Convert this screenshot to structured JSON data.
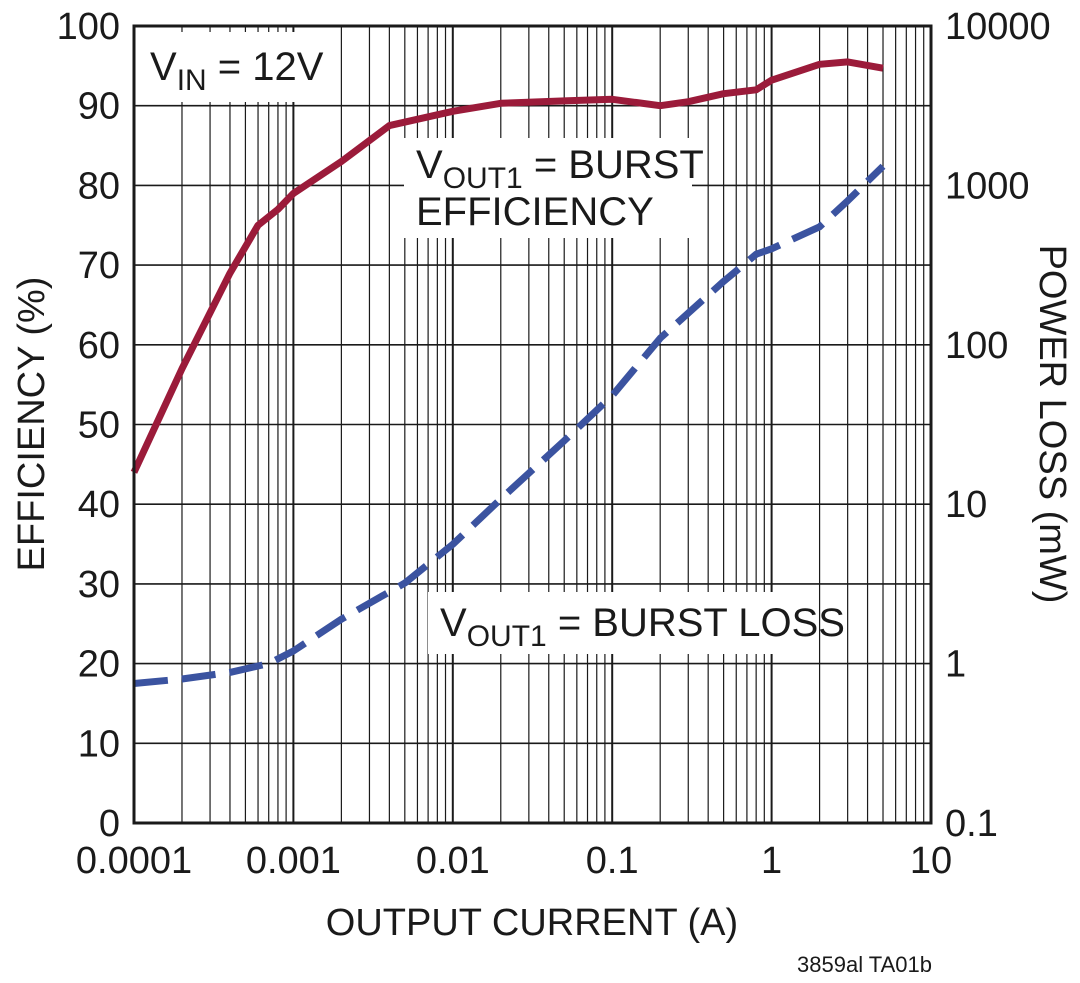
{
  "chart_data": {
    "type": "line",
    "xlabel": "OUTPUT CURRENT (A)",
    "ylabel_left": "EFFICIENCY (%)",
    "ylabel_right": "POWER LOSS (mW)",
    "x_scale": "log",
    "xlim": [
      0.0001,
      10
    ],
    "ylim_left": [
      0,
      100
    ],
    "ylim_right": [
      0.1,
      10000
    ],
    "y_right_scale": "log",
    "grid": true,
    "x_ticks": [
      "0.0001",
      "0.001",
      "0.01",
      "0.1",
      "1",
      "10"
    ],
    "y_left_ticks": [
      "0",
      "10",
      "20",
      "30",
      "40",
      "50",
      "60",
      "70",
      "80",
      "90",
      "100"
    ],
    "y_right_ticks": [
      "0.1",
      "1",
      "10",
      "100",
      "1000",
      "10000"
    ],
    "annotations": {
      "vin": {
        "main": "V",
        "sub": "IN",
        "rest": " = 12V"
      },
      "eff": {
        "main": "V",
        "sub": "OUT1",
        "rest": " = BURST",
        "line2": "EFFICIENCY"
      },
      "loss": {
        "main": "V",
        "sub": "OUT1",
        "rest": " = BURST LOSS"
      }
    },
    "figure_id": "3859al TA01b",
    "colors": {
      "efficiency": "#9b1b3a",
      "loss": "#3b53a0",
      "grid": "#1a1a1a"
    },
    "series": [
      {
        "axis": "left",
        "style": "solid",
        "x": [
          0.0001,
          0.0002,
          0.0004,
          0.0006,
          0.0008,
          0.001,
          0.002,
          0.004,
          0.01,
          0.02,
          0.05,
          0.1,
          0.2,
          0.3,
          0.5,
          0.8,
          1,
          2,
          3,
          5
        ],
        "values": [
          44,
          57,
          69,
          75,
          77,
          79,
          83,
          87.5,
          89.3,
          90.3,
          90.6,
          90.8,
          90,
          90.5,
          91.5,
          92,
          93.2,
          95.2,
          95.5,
          94.7
        ]
      },
      {
        "axis": "right",
        "style": "dashed",
        "x": [
          0.0001,
          0.0002,
          0.0004,
          0.0007,
          0.001,
          0.002,
          0.005,
          0.01,
          0.02,
          0.05,
          0.1,
          0.2,
          0.5,
          0.8,
          1,
          2,
          3,
          5
        ],
        "values": [
          0.75,
          0.8,
          0.88,
          1.0,
          1.2,
          1.9,
          3.2,
          5.6,
          10.8,
          25,
          48,
          110,
          250,
          370,
          400,
          550,
          800,
          1320
        ]
      }
    ]
  }
}
